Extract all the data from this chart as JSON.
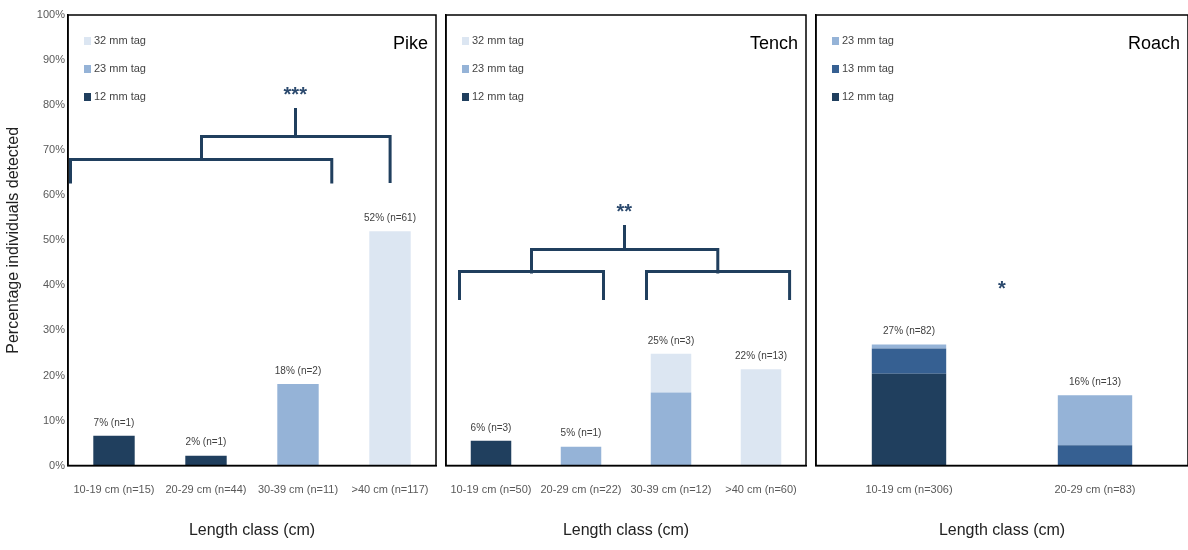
{
  "chart_data": [
    {
      "type": "bar",
      "title": "Pike",
      "stacked": true,
      "categories": [
        "10-19 cm (n=15)",
        "20-29 cm (n=44)",
        "30-39 cm (n=11)",
        ">40 cm (n=117)"
      ],
      "series": [
        {
          "name": "12 mm tag",
          "color": "#203f5e",
          "values": [
            6.6,
            2.2,
            null,
            null
          ]
        },
        {
          "name": "23 mm tag",
          "color": "#95b3d7",
          "values": [
            null,
            null,
            18.1,
            null
          ]
        },
        {
          "name": "32 mm tag",
          "color": "#dce6f2",
          "values": [
            null,
            null,
            null,
            52
          ]
        }
      ],
      "totals": [
        "7% (n=1)",
        "2% (n=1)",
        "18% (n=2)",
        "52% (n=61)"
      ],
      "xlabel": "Length class (cm)",
      "ylabel": "Percentage individuals detected",
      "ylim": [
        0,
        100
      ],
      "yticks": [
        {
          "value": 0,
          "label": "0%"
        },
        {
          "value": 10,
          "label": "10%"
        },
        {
          "value": 20,
          "label": "20%"
        },
        {
          "value": 30,
          "label": "30%"
        },
        {
          "value": 40,
          "label": "40%"
        },
        {
          "value": 50,
          "label": "50%"
        },
        {
          "value": 60,
          "label": "60%"
        },
        {
          "value": 70,
          "label": "70%"
        },
        {
          "value": 80,
          "label": "80%"
        },
        {
          "value": 90,
          "label": "90%"
        },
        {
          "value": 100,
          "label": "100%"
        }
      ],
      "annotations": [
        "***"
      ],
      "legend": "top left"
    },
    {
      "type": "bar",
      "title": "Tench",
      "stacked": true,
      "categories": [
        "10-19 cm (n=50)",
        "20-29 cm (n=22)",
        "30-39 cm (n=12)",
        ">40 cm (n=60)"
      ],
      "series": [
        {
          "name": "12 mm tag",
          "color": "#203f5e",
          "values": [
            5.5,
            null,
            null,
            null
          ]
        },
        {
          "name": "23 mm tag",
          "color": "#95b3d7",
          "values": [
            null,
            4.2,
            16.2,
            null
          ]
        },
        {
          "name": "32 mm tag",
          "color": "#dce6f2",
          "values": [
            null,
            null,
            8.6,
            21.4
          ]
        }
      ],
      "totals": [
        "6% (n=3)",
        "5% (n=1)",
        "25% (n=3)",
        "22% (n=13)"
      ],
      "xlabel": "Length class (cm)",
      "ylim": [
        0,
        100
      ],
      "tick_labels": "x",
      "annotations": [
        "**"
      ],
      "legend": "top left"
    },
    {
      "type": "bar",
      "title": "Roach",
      "stacked": true,
      "categories": [
        "10-19 cm (n=306)",
        "20-29 cm (n=83)"
      ],
      "series": [
        {
          "name": "12 mm tag",
          "color": "#203f5e",
          "values": [
            20.4,
            null
          ]
        },
        {
          "name": "13 mm tag",
          "color": "#366092",
          "values": [
            5.6,
            4.5
          ]
        },
        {
          "name": "23 mm tag",
          "color": "#95b3d7",
          "values": [
            0.9,
            11.1
          ]
        }
      ],
      "totals": [
        "27% (n=82)",
        "16% (n=13)"
      ],
      "xlabel": "Length class (cm)",
      "ylim": [
        0,
        100
      ],
      "tick_labels": "x",
      "annotations": [
        "*"
      ],
      "legend": "top left"
    }
  ]
}
